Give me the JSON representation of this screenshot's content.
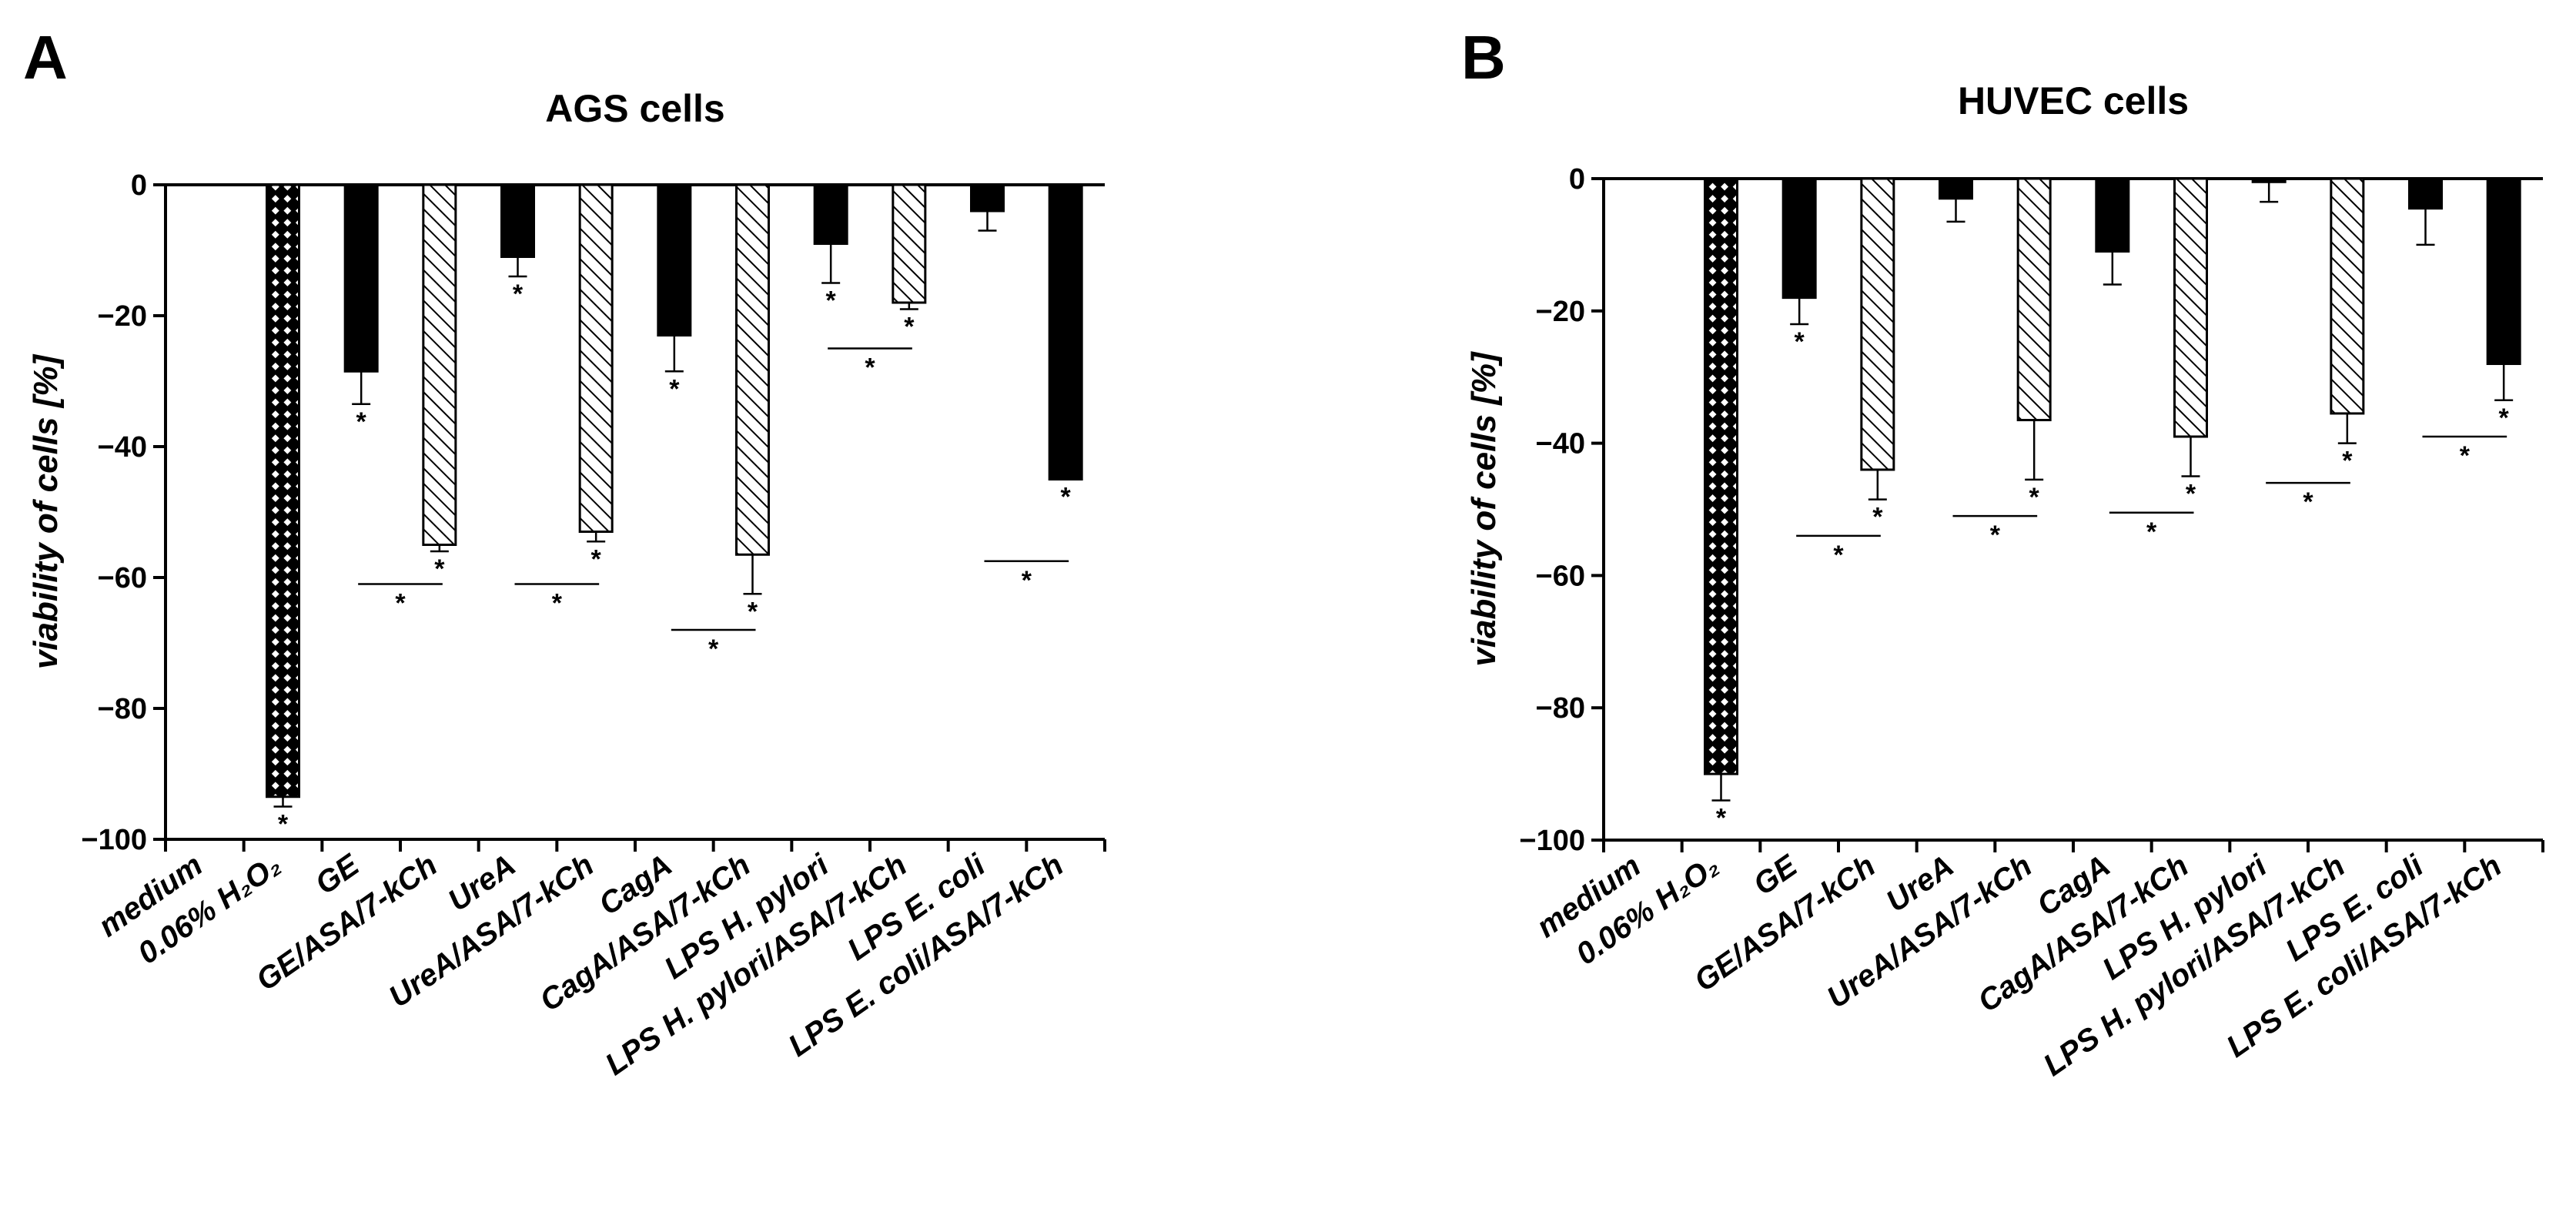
{
  "chart_data": [
    {
      "panel": "A",
      "type": "bar",
      "title": "AGS cells",
      "ylabel": "viability of cells [%]",
      "xlabel": "",
      "ylim": [
        -100,
        0
      ],
      "yticks": [
        "0",
        "−20",
        "−40",
        "−60",
        "−80",
        "−100"
      ],
      "categories": [
        "medium",
        "0.06% H₂O₂",
        "GE",
        "GE/ASA/7-kCh",
        "UreA",
        "UreA/ASA/7-kCh",
        "CagA",
        "CagA/ASA/7-kCh",
        "LPS H. pylori",
        "LPS H. pylori/ASA/7-kCh",
        "LPS E. coli",
        "LPS E. coli/ASA/7-kCh"
      ],
      "patterns": [
        "none",
        "checker",
        "solid",
        "hatch",
        "solid",
        "hatch",
        "solid",
        "hatch",
        "solid",
        "hatch",
        "solid",
        "solid"
      ],
      "values": [
        0,
        -93.5,
        -28.5,
        -55,
        -11,
        -53,
        -23,
        -56.5,
        -9,
        -18,
        -4,
        -45
      ],
      "errors": [
        0,
        1.5,
        5,
        1,
        3,
        1.5,
        5.5,
        6,
        6,
        1,
        3,
        0
      ],
      "significance": [
        {
          "category": 1,
          "label": "*"
        },
        {
          "category": 2,
          "label": "*"
        },
        {
          "category": 3,
          "label": "*"
        },
        {
          "category": 4,
          "label": "*"
        },
        {
          "category": 5,
          "label": "*"
        },
        {
          "category": 6,
          "label": "*"
        },
        {
          "category": 7,
          "label": "*"
        },
        {
          "category": 8,
          "label": "*"
        },
        {
          "category": 9,
          "label": "*"
        },
        {
          "category": 11,
          "label": "*"
        }
      ],
      "brackets": [
        {
          "from": 2,
          "to": 3,
          "y": -61,
          "label": "*"
        },
        {
          "from": 4,
          "to": 5,
          "y": -61,
          "label": "*"
        },
        {
          "from": 6,
          "to": 7,
          "y": -68,
          "label": "*"
        },
        {
          "from": 8,
          "to": 9,
          "y": -25,
          "label": "*"
        },
        {
          "from": 10,
          "to": 11,
          "y": -57.5,
          "label": "*"
        }
      ]
    },
    {
      "panel": "B",
      "type": "bar",
      "title": "HUVEC cells",
      "ylabel": "viability of cells [%]",
      "xlabel": "",
      "ylim": [
        -100,
        0
      ],
      "yticks": [
        "0",
        "−20",
        "−40",
        "−60",
        "−80",
        "−100"
      ],
      "categories": [
        "medium",
        "0.06% H₂O₂",
        "GE",
        "GE/ASA/7-kCh",
        "UreA",
        "UreA/ASA/7-kCh",
        "CagA",
        "CagA/ASA/7-kCh",
        "LPS H. pylori",
        "LPS H. pylori/ASA/7-kCh",
        "LPS E. coli",
        "LPS E. coli/ASA/7-kCh"
      ],
      "patterns": [
        "none",
        "checker",
        "solid",
        "hatch",
        "solid",
        "hatch",
        "solid",
        "hatch",
        "solid",
        "hatch",
        "solid",
        "solid"
      ],
      "values": [
        0,
        -90,
        -18,
        -44,
        -3,
        -36.5,
        -11,
        -39,
        -0.5,
        -35.5,
        -4.5,
        -28
      ],
      "errors": [
        0,
        4,
        4,
        4.5,
        3.5,
        9,
        5,
        6,
        3,
        4.5,
        5.5,
        5.5
      ],
      "significance": [
        {
          "category": 1,
          "label": "*"
        },
        {
          "category": 2,
          "label": "*"
        },
        {
          "category": 3,
          "label": "*"
        },
        {
          "category": 5,
          "label": "*"
        },
        {
          "category": 7,
          "label": "*"
        },
        {
          "category": 9,
          "label": "*"
        },
        {
          "category": 11,
          "label": "*"
        }
      ],
      "brackets": [
        {
          "from": 2,
          "to": 3,
          "y": -54,
          "label": "*"
        },
        {
          "from": 4,
          "to": 5,
          "y": -51,
          "label": "*"
        },
        {
          "from": 6,
          "to": 7,
          "y": -50.5,
          "label": "*"
        },
        {
          "from": 8,
          "to": 9,
          "y": -46,
          "label": "*"
        },
        {
          "from": 10,
          "to": 11,
          "y": -39,
          "label": "*"
        }
      ]
    }
  ]
}
